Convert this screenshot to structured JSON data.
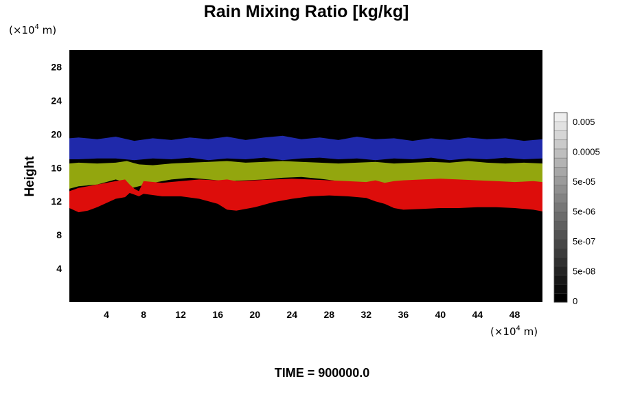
{
  "chart_data": {
    "type": "heatmap",
    "title": "Rain Mixing Ratio [kg/kg]",
    "ylabel": "Height",
    "xlabel": "",
    "x_unit": {
      "prefix": "(×10",
      "exponent": "4",
      "suffix": " m)"
    },
    "y_unit": {
      "prefix": "(×10",
      "exponent": "4",
      "suffix": " m)"
    },
    "xlim": [
      0,
      51
    ],
    "ylim": [
      0,
      30
    ],
    "x_ticks": [
      4,
      8,
      12,
      16,
      20,
      24,
      28,
      32,
      36,
      40,
      44,
      48
    ],
    "y_ticks": [
      4,
      8,
      12,
      16,
      20,
      24,
      28
    ],
    "background_color": "#000000",
    "colorbar": {
      "tick_labels": [
        "0",
        "5e-08",
        "5e-07",
        "5e-06",
        "5e-05",
        "0.0005",
        "0.005"
      ],
      "levels": 21,
      "min_color": "#000000",
      "max_color": "#eeeeee"
    },
    "layers": [
      {
        "color": "#2530c8",
        "opacity": 0.85,
        "x": [
          0,
          1,
          3,
          5,
          7,
          9,
          11,
          13,
          15,
          17,
          19,
          21,
          23,
          25,
          27,
          29,
          31,
          33,
          35,
          37,
          39,
          41,
          43,
          45,
          47,
          49,
          51
        ],
        "top": [
          19.5,
          19.6,
          19.4,
          19.7,
          19.2,
          19.5,
          19.3,
          19.6,
          19.4,
          19.7,
          19.3,
          19.6,
          19.8,
          19.4,
          19.6,
          19.3,
          19.7,
          19.4,
          19.5,
          19.2,
          19.5,
          19.3,
          19.6,
          19.4,
          19.5,
          19.2,
          19.4
        ],
        "bottom": [
          17.0,
          17.0,
          17.1,
          17.1,
          16.9,
          17.1,
          17.0,
          17.2,
          16.9,
          17.1,
          17.0,
          17.2,
          16.9,
          17.1,
          17.2,
          17.0,
          17.1,
          16.9,
          17.1,
          17.0,
          17.2,
          16.9,
          17.1,
          17.0,
          17.2,
          17.0,
          17.1
        ]
      },
      {
        "color": "#93a60e",
        "opacity": 1,
        "x": [
          0,
          1,
          3,
          5,
          6.2,
          6.8,
          7.5,
          9,
          11,
          13,
          15,
          17,
          19,
          21,
          23,
          25,
          27,
          29,
          31,
          33,
          35,
          37,
          39,
          41,
          43,
          45,
          47,
          49,
          51
        ],
        "top": [
          16.5,
          16.6,
          16.5,
          16.6,
          16.8,
          16.6,
          16.4,
          16.3,
          16.5,
          16.6,
          16.7,
          16.8,
          16.6,
          16.7,
          16.8,
          16.7,
          16.6,
          16.5,
          16.6,
          16.7,
          16.5,
          16.6,
          16.7,
          16.6,
          16.8,
          16.6,
          16.5,
          16.6,
          16.5
        ],
        "bottom": [
          13.5,
          13.8,
          14.0,
          14.6,
          14.2,
          13.6,
          13.8,
          14.2,
          14.6,
          14.8,
          14.6,
          14.4,
          14.5,
          14.6,
          14.8,
          14.9,
          14.7,
          14.4,
          14.2,
          14.0,
          13.9,
          14.1,
          14.2,
          14.0,
          13.8,
          13.8,
          13.9,
          13.8,
          13.7
        ]
      },
      {
        "color": "#dd0d0b",
        "opacity": 1,
        "x": [
          0,
          1,
          2,
          3,
          4,
          5,
          6,
          6.5,
          7,
          7.5,
          8,
          10,
          12,
          14,
          16,
          17,
          18,
          20,
          22,
          24,
          26,
          28,
          30,
          32,
          33,
          34,
          35,
          36,
          38,
          40,
          42,
          44,
          46,
          48,
          50,
          51
        ],
        "top": [
          13.2,
          13.6,
          13.8,
          14.0,
          14.2,
          14.4,
          14.6,
          14.0,
          13.5,
          13.2,
          14.4,
          14.2,
          14.4,
          14.6,
          14.5,
          14.6,
          14.4,
          14.5,
          14.6,
          14.7,
          14.6,
          14.5,
          14.4,
          14.3,
          14.5,
          14.2,
          14.4,
          14.5,
          14.6,
          14.7,
          14.6,
          14.5,
          14.4,
          14.3,
          14.4,
          14.3
        ],
        "bottom": [
          11.2,
          10.7,
          10.9,
          11.3,
          11.8,
          12.3,
          12.5,
          13.0,
          12.8,
          12.6,
          12.9,
          12.6,
          12.6,
          12.3,
          11.7,
          11.0,
          10.9,
          11.3,
          11.9,
          12.3,
          12.6,
          12.7,
          12.6,
          12.4,
          12.0,
          11.7,
          11.2,
          11.0,
          11.1,
          11.2,
          11.2,
          11.3,
          11.3,
          11.2,
          11.0,
          10.8
        ]
      }
    ],
    "footer": "TIME = 900000.0"
  }
}
